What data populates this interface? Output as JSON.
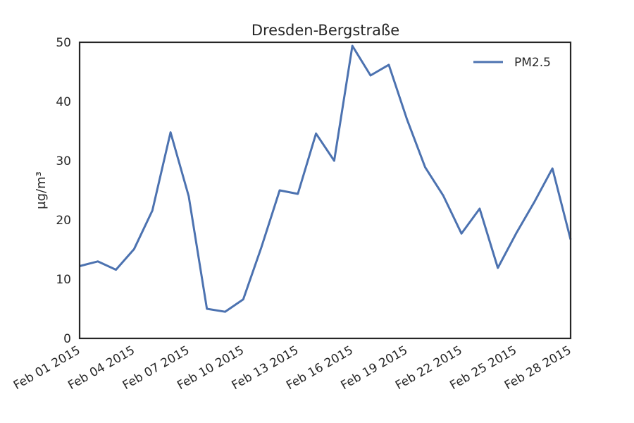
{
  "chart_data": {
    "type": "line",
    "title": "Dresden-Bergstraße",
    "xlabel": "",
    "ylabel": "µg/m³",
    "x": [
      "Feb 01 2015",
      "Feb 02 2015",
      "Feb 03 2015",
      "Feb 04 2015",
      "Feb 05 2015",
      "Feb 06 2015",
      "Feb 07 2015",
      "Feb 08 2015",
      "Feb 09 2015",
      "Feb 10 2015",
      "Feb 11 2015",
      "Feb 12 2015",
      "Feb 13 2015",
      "Feb 14 2015",
      "Feb 15 2015",
      "Feb 16 2015",
      "Feb 17 2015",
      "Feb 18 2015",
      "Feb 19 2015",
      "Feb 20 2015",
      "Feb 21 2015",
      "Feb 22 2015",
      "Feb 23 2015",
      "Feb 24 2015",
      "Feb 25 2015",
      "Feb 26 2015",
      "Feb 27 2015",
      "Feb 28 2015"
    ],
    "x_tick_labels": [
      "Feb 01 2015",
      "Feb 04 2015",
      "Feb 07 2015",
      "Feb 10 2015",
      "Feb 13 2015",
      "Feb 16 2015",
      "Feb 19 2015",
      "Feb 22 2015",
      "Feb 25 2015",
      "Feb 28 2015"
    ],
    "ylim": [
      0,
      50
    ],
    "y_ticks": [
      0,
      10,
      20,
      30,
      40,
      50
    ],
    "grid": false,
    "legend": "top-right",
    "series": [
      {
        "name": "PM2.5",
        "color": "#4c72b0",
        "values": [
          12.2,
          13.0,
          11.6,
          15.1,
          21.6,
          34.8,
          24.0,
          5.0,
          4.5,
          6.6,
          15.4,
          25.0,
          24.4,
          34.6,
          30.0,
          49.4,
          44.4,
          46.2,
          37.0,
          28.9,
          24.1,
          17.7,
          21.9,
          11.9,
          17.7,
          23.0,
          28.7,
          16.7
        ]
      }
    ]
  }
}
